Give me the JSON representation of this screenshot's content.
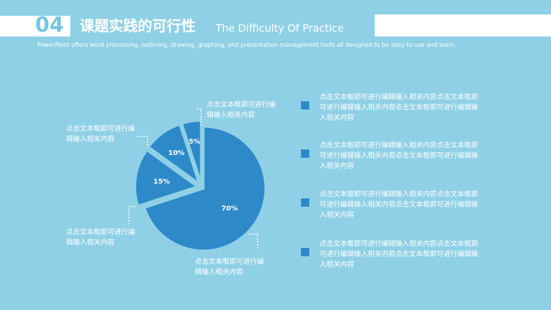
{
  "header": {
    "number": "04",
    "title_cn": "课题实践的可行性",
    "title_en": "The Difficulty Of Practice",
    "subtitle": "PowerPoint offers word processing, outlining, drawing, graphing, and presentation management tools all designed to be easy to use and learn."
  },
  "chart_data": {
    "type": "pie",
    "slices": [
      {
        "label": "70%",
        "value": 70
      },
      {
        "label": "15%",
        "value": 15
      },
      {
        "label": "10%",
        "value": 10
      },
      {
        "label": "5%",
        "value": 5
      }
    ]
  },
  "colors": {
    "background": "#8fd0e6",
    "slice_fill": "#2e89c9",
    "slice_border": "#8fd0e6",
    "leader_line": "#ffffff",
    "accent": "#78c6e2"
  },
  "callouts": [
    {
      "text": "点击文本框即可进行编辑输入相关内容"
    },
    {
      "text": "点击文本框即可进行编辑输入相关内容"
    },
    {
      "text": "点击文本框即可进行编辑输入相关内容"
    },
    {
      "text": "点击文本框即可进行编辑输入相关内容"
    }
  ],
  "bullets": [
    {
      "text": "点击文本框即可进行编辑输入相关内容点击文本框即可进行编辑输入相关内容点击文本框即可进行编辑输入相关内容"
    },
    {
      "text": "点击文本框即可进行编辑输入相关内容点击文本框即可进行编辑输入相关内容点击文本框即可进行编辑输入相关内容"
    },
    {
      "text": "点击文本框即可进行编辑输入相关内容点击文本框即可进行编辑输入相关内容点击文本框即可进行编辑输入相关内容"
    },
    {
      "text": "点击文本框即可进行编辑输入相关内容点击文本框即可进行编辑输入相关内容点击文本框即可进行编辑输入相关内容"
    }
  ]
}
